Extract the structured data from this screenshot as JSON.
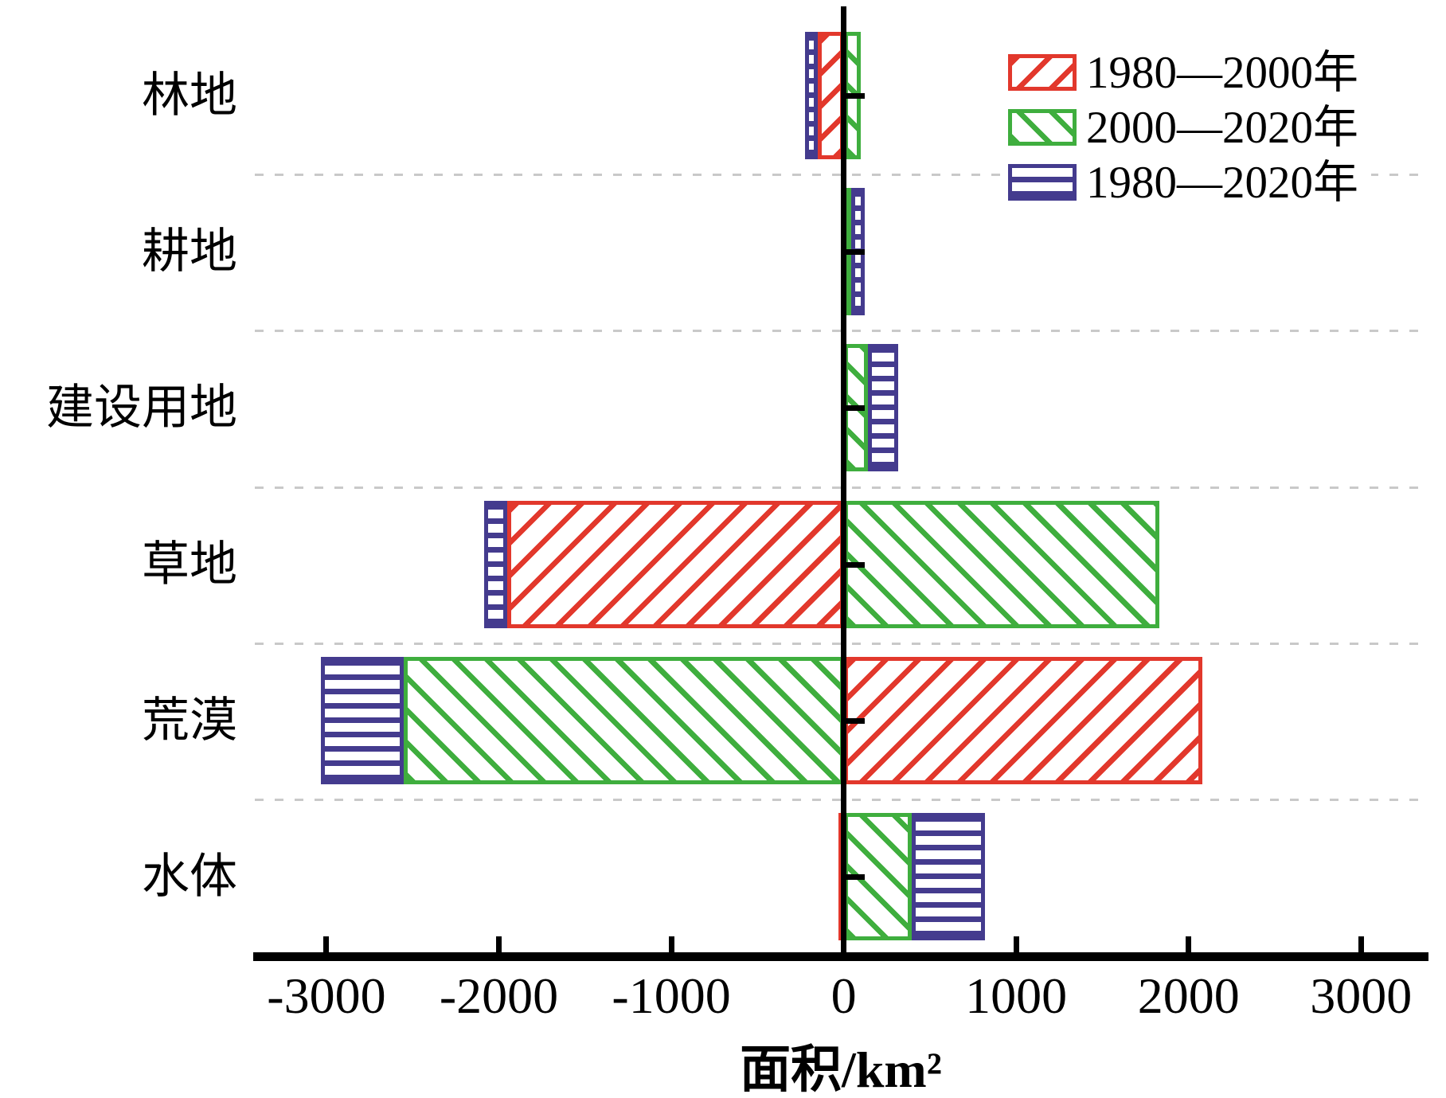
{
  "chart_data": {
    "type": "bar",
    "orientation": "horizontal",
    "title": "",
    "xlabel": "面积/km²",
    "ylabel": "",
    "unit": "km²",
    "categories": [
      "林地",
      "耕地",
      "建设用地",
      "草地",
      "荒漠",
      "水体"
    ],
    "series": [
      {
        "name": "1980—2000年",
        "color": "#e2382c",
        "hatch": "diagonal-forward-slash",
        "values": [
          -150,
          0,
          0,
          -1950,
          2080,
          -30
        ]
      },
      {
        "name": "2000—2020年",
        "color": "#3fae3e",
        "hatch": "diagonal-back-slash",
        "values": [
          100,
          45,
          140,
          1830,
          -2550,
          395
        ]
      },
      {
        "name": "1980—2020年",
        "color": "#443b8e",
        "hatch": "horizontal-stripes",
        "values": [
          -75,
          75,
          175,
          -135,
          -480,
          425
        ]
      }
    ],
    "stacking": "stacked-by-sign",
    "xticks": [
      "-3000",
      "-2000",
      "-1000",
      "0",
      "1000",
      "2000",
      "3000"
    ],
    "xtick_values": [
      -3000,
      -2000,
      -1000,
      0,
      1000,
      2000,
      3000
    ],
    "xlim": [
      -3415,
      3385
    ],
    "grid": "dashed horizontal separators between categories",
    "gridline_color": "#c9c9c9",
    "axis_color": "#000000",
    "legend_position": "upper-right"
  }
}
